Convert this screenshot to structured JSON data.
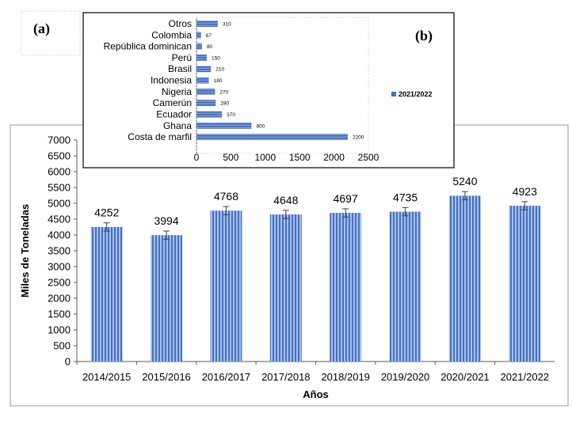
{
  "panel_labels": {
    "a": "(a)",
    "b": "(b)"
  },
  "colors": {
    "bar": "#4472c4",
    "bar_light": "#a9bfe6",
    "text": "#000000",
    "axis": "#595959"
  },
  "chart_data": [
    {
      "id": "a",
      "type": "bar",
      "title": "",
      "xlabel": "Años",
      "ylabel": "Miles de Toneladas",
      "categories": [
        "2014/2015",
        "2015/2016",
        "2016/2017",
        "2017/2018",
        "2018/2019",
        "2019/2020",
        "2020/2021",
        "2021/2022"
      ],
      "values": [
        4252,
        3994,
        4768,
        4648,
        4697,
        4735,
        5240,
        4923
      ],
      "data_labels": [
        "4252",
        "3994",
        "4768",
        "4648",
        "4697",
        "4735",
        "5240",
        "4923"
      ],
      "error": [
        130,
        130,
        130,
        130,
        130,
        130,
        130,
        130
      ],
      "ylim": [
        0,
        7000
      ],
      "yticks": [
        0,
        500,
        1000,
        1500,
        2000,
        2500,
        3000,
        3500,
        4000,
        4500,
        5000,
        5500,
        6000,
        6500,
        7000
      ],
      "grid": false,
      "legend": "none"
    },
    {
      "id": "b",
      "type": "bar",
      "orientation": "horizontal",
      "title": "",
      "categories": [
        "Otros",
        "Colombia",
        "República dominican",
        "Perú",
        "Brasil",
        "Indonesia",
        "Nigeria",
        "Camerún",
        "Ecuador",
        "Ghana",
        "Costa de marfil"
      ],
      "values": [
        310,
        67,
        80,
        150,
        210,
        180,
        270,
        280,
        370,
        800,
        2200
      ],
      "data_labels": [
        "310",
        "67",
        "80",
        "150",
        "210",
        "180",
        "270",
        "280",
        "370",
        "800",
        "2200"
      ],
      "series": [
        {
          "name": "2021/2022"
        }
      ],
      "xlim": [
        0,
        2500
      ],
      "xticks": [
        0,
        500,
        1000,
        1500,
        2000,
        2500
      ],
      "grid": false,
      "legend": "right"
    }
  ]
}
